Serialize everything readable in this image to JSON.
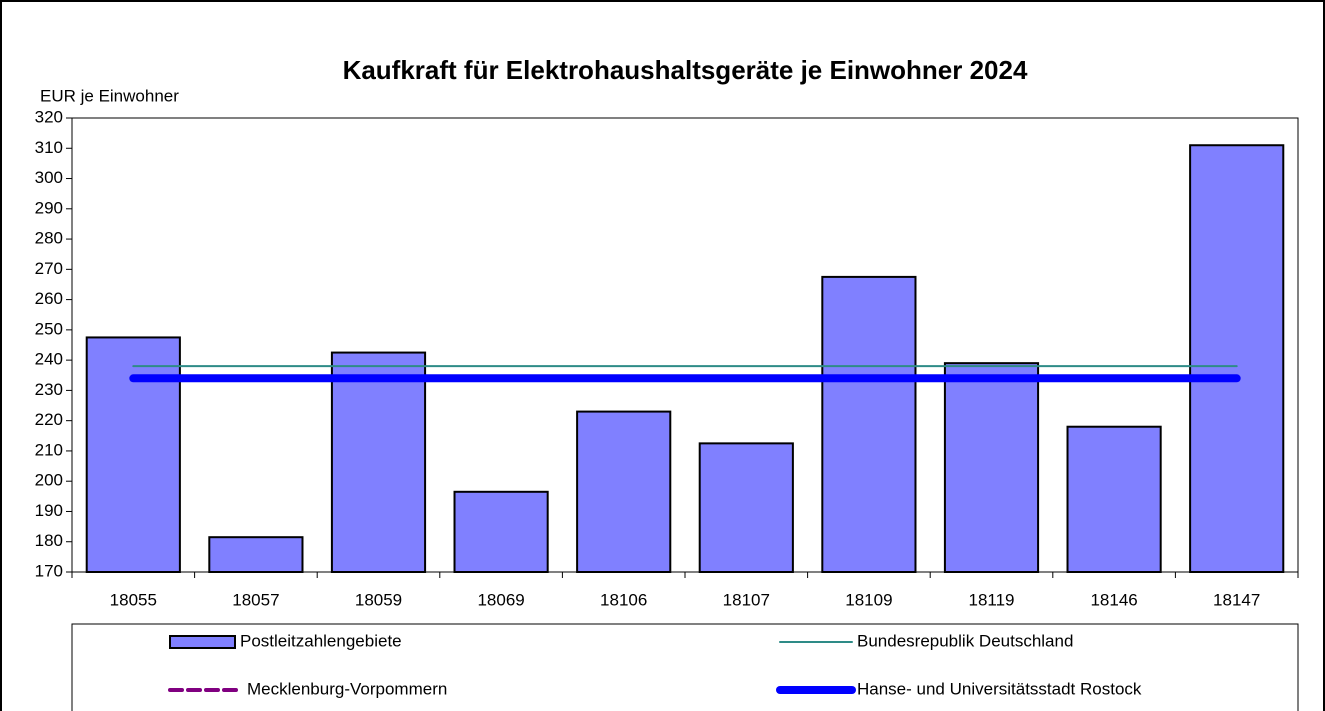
{
  "chart_data": {
    "type": "bar",
    "title": "Kaufkraft für Elektrohaushaltsgeräte je Einwohner 2024",
    "y_axis_label": "EUR je Einwohner",
    "categories": [
      "18055",
      "18057",
      "18059",
      "18069",
      "18106",
      "18107",
      "18109",
      "18119",
      "18146",
      "18147"
    ],
    "series": [
      {
        "name": "Postleitzahlengebiete",
        "type": "bar",
        "color": "#8080ff",
        "values": [
          247.5,
          181.5,
          242.5,
          196.5,
          223,
          212.5,
          267.5,
          239,
          218,
          311
        ]
      },
      {
        "name": "Bundesrepublik Deutschland",
        "type": "line",
        "color": "#2e8b87",
        "line_style": "solid",
        "line_width": 2,
        "values": [
          238,
          238,
          238,
          238,
          238,
          238,
          238,
          238,
          238,
          238
        ]
      },
      {
        "name": "Mecklenburg-Vorpommern",
        "type": "line",
        "color": "#800080",
        "line_style": "dashed",
        "line_width": 4,
        "values": [
          234,
          234,
          234,
          234,
          234,
          234,
          234,
          234,
          234,
          234
        ]
      },
      {
        "name": "Hanse- und Universitätsstadt Rostock",
        "type": "line",
        "color": "#0000ff",
        "line_style": "solid",
        "line_width": 8,
        "values": [
          234,
          234,
          234,
          234,
          234,
          234,
          234,
          234,
          234,
          234
        ]
      }
    ],
    "ylim": [
      170,
      320
    ],
    "yticks": [
      170,
      180,
      190,
      200,
      210,
      220,
      230,
      240,
      250,
      260,
      270,
      280,
      290,
      300,
      310,
      320
    ],
    "grid": false,
    "legend_position": "bottom"
  }
}
